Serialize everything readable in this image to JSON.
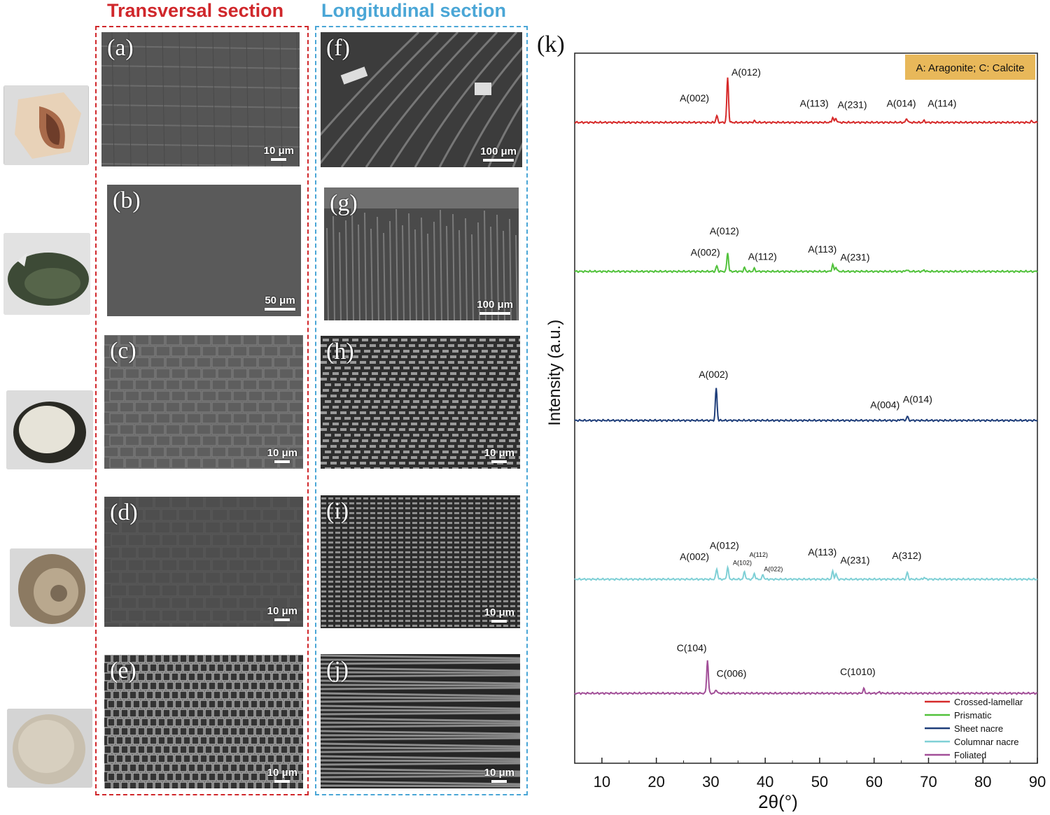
{
  "figure": {
    "col_transversal": "Transversal section",
    "col_longitudinal": "Longitudinal section",
    "transversal_color": "#d0272b",
    "longitudinal_color": "#4aa6d6",
    "panels_transversal": [
      {
        "label": "(a)",
        "scale": "10 μm"
      },
      {
        "label": "(b)",
        "scale": "50 μm"
      },
      {
        "label": "(c)",
        "scale": "10 μm"
      },
      {
        "label": "(d)",
        "scale": "10 μm"
      },
      {
        "label": "(e)",
        "scale": "10 μm"
      }
    ],
    "panels_longitudinal": [
      {
        "label": "(f)",
        "scale": "100 μm"
      },
      {
        "label": "(g)",
        "scale": "100 μm"
      },
      {
        "label": "(h)",
        "scale": "10 μm"
      },
      {
        "label": "(i)",
        "scale": "10 μm"
      },
      {
        "label": "(j)",
        "scale": "10 μm"
      }
    ]
  },
  "chart_data": {
    "type": "line",
    "panel_label": "(k)",
    "xlabel": "2θ(°)",
    "ylabel": "Intensity (a.u.)",
    "xlim": [
      5,
      90
    ],
    "xticks": [
      10,
      20,
      30,
      40,
      50,
      60,
      70,
      80,
      90
    ],
    "note": "A: Aragonite; C: Calcite",
    "note_color": "#e8b85a",
    "legend_position": "bottom-right",
    "series": [
      {
        "name": "Crossed-lamellar",
        "color": "#d62a2a",
        "peaks": [
          [
            31.1,
            0.15
          ],
          [
            33.1,
            1.0
          ],
          [
            38.0,
            0.03
          ],
          [
            52.4,
            0.11
          ],
          [
            53.0,
            0.09
          ],
          [
            66.0,
            0.09
          ],
          [
            69.2,
            0.04
          ],
          [
            89.0,
            0.03
          ]
        ],
        "annotations": [
          {
            "text": "A(002)",
            "x": 27.0,
            "lift": 0.47,
            "small": false
          },
          {
            "text": "A(012)",
            "x": 36.5,
            "lift": 1.05,
            "small": false
          },
          {
            "text": "A(113)",
            "x": 49.0,
            "lift": 0.35,
            "small": false
          },
          {
            "text": "A(231)",
            "x": 56.0,
            "lift": 0.32,
            "small": false
          },
          {
            "text": "A(014)",
            "x": 65.0,
            "lift": 0.35,
            "small": false
          },
          {
            "text": "A(114)",
            "x": 72.5,
            "lift": 0.35,
            "small": false
          }
        ]
      },
      {
        "name": "Prismatic",
        "color": "#52c23c",
        "peaks": [
          [
            31.1,
            0.12
          ],
          [
            33.1,
            0.42
          ],
          [
            36.2,
            0.08
          ],
          [
            38.0,
            0.06
          ],
          [
            52.4,
            0.15
          ],
          [
            53.0,
            0.1
          ],
          [
            66.0,
            0.04
          ],
          [
            69.2,
            0.03
          ]
        ],
        "annotations": [
          {
            "text": "A(012)",
            "x": 32.5,
            "lift": 0.83,
            "small": false
          },
          {
            "text": "A(002)",
            "x": 29.0,
            "lift": 0.35,
            "small": false
          },
          {
            "text": "A(112)",
            "x": 39.5,
            "lift": 0.26,
            "small": false
          },
          {
            "text": "A(113)",
            "x": 50.5,
            "lift": 0.42,
            "small": false
          },
          {
            "text": "A(231)",
            "x": 56.5,
            "lift": 0.24,
            "small": false
          }
        ]
      },
      {
        "name": "Sheet nacre",
        "color": "#1f3e7a",
        "peaks": [
          [
            31.0,
            0.72
          ],
          [
            65.0,
            0.03
          ],
          [
            66.1,
            0.09
          ]
        ],
        "annotations": [
          {
            "text": "A(002)",
            "x": 30.5,
            "lift": 0.95,
            "small": false
          },
          {
            "text": "A(004)",
            "x": 62.0,
            "lift": 0.27,
            "small": false
          },
          {
            "text": "A(014)",
            "x": 68.0,
            "lift": 0.4,
            "small": false
          }
        ]
      },
      {
        "name": "Columnar nacre",
        "color": "#7fd0d6",
        "peaks": [
          [
            31.1,
            0.24
          ],
          [
            33.1,
            0.27
          ],
          [
            36.2,
            0.17
          ],
          [
            38.0,
            0.13
          ],
          [
            39.6,
            0.1
          ],
          [
            52.4,
            0.17
          ],
          [
            53.0,
            0.12
          ],
          [
            66.1,
            0.15
          ],
          [
            69.2,
            0.04
          ]
        ],
        "annotations": [
          {
            "text": "A(002)",
            "x": 27.0,
            "lift": 0.43,
            "small": false
          },
          {
            "text": "A(012)",
            "x": 32.5,
            "lift": 0.68,
            "small": false
          },
          {
            "text": "A(102)",
            "x": 35.8,
            "lift": 0.32,
            "small": true
          },
          {
            "text": "A(112)",
            "x": 38.8,
            "lift": 0.5,
            "small": true
          },
          {
            "text": "A(022)",
            "x": 41.5,
            "lift": 0.18,
            "small": true
          },
          {
            "text": "A(113)",
            "x": 50.5,
            "lift": 0.53,
            "small": false
          },
          {
            "text": "A(231)",
            "x": 56.5,
            "lift": 0.35,
            "small": false
          },
          {
            "text": "A(312)",
            "x": 66.0,
            "lift": 0.45,
            "small": false
          }
        ]
      },
      {
        "name": "Foliated",
        "color": "#a24f98",
        "peaks": [
          [
            29.4,
            0.74
          ],
          [
            31.0,
            0.08
          ],
          [
            58.1,
            0.1
          ],
          [
            61.0,
            0.03
          ]
        ],
        "annotations": [
          {
            "text": "C(104)",
            "x": 26.5,
            "lift": 0.94,
            "small": false
          },
          {
            "text": "C(006)",
            "x": 33.8,
            "lift": 0.37,
            "small": false
          },
          {
            "text": "C(1010)",
            "x": 57.0,
            "lift": 0.41,
            "small": false
          }
        ]
      }
    ]
  }
}
